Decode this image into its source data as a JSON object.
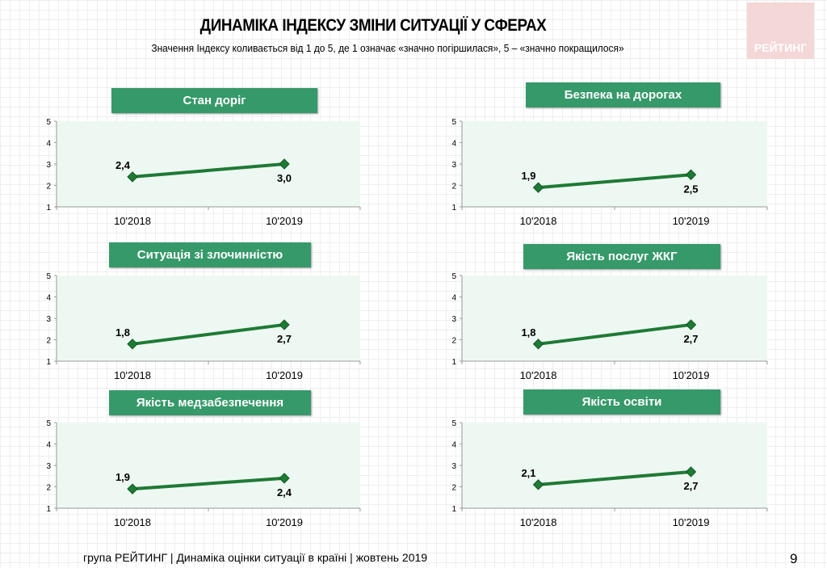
{
  "header": {
    "title": "ДИНАМІКА ІНДЕКСУ ЗМІНИ СИТУАЦІЇ У СФЕРАХ",
    "subtitle": "Значення Індексу коливається від 1 до 5, де 1 означає «значно погіршилася», 5 – «значно покращилося»",
    "logo": "РЕЙТИНГ"
  },
  "footer": {
    "text": "група РЕЙТИНГ |  Динаміка оцінки ситуації в країні  |  жовтень  2019",
    "page": "9"
  },
  "colors": {
    "line": "#1e7a35",
    "plot_bg": "#eef8f2",
    "title_bg": "#36996a"
  },
  "chart_data": [
    {
      "type": "line",
      "title": "Стан доріг",
      "categories": [
        "10'2018",
        "10'2019"
      ],
      "values": [
        2.4,
        3.0
      ],
      "labels": [
        "2,4",
        "3,0"
      ],
      "ylim": [
        1,
        5
      ],
      "yticks": [
        "1",
        "2",
        "3",
        "4",
        "5"
      ]
    },
    {
      "type": "line",
      "title": "Безпека на дорогах",
      "categories": [
        "10'2018",
        "10'2019"
      ],
      "values": [
        1.9,
        2.5
      ],
      "labels": [
        "1,9",
        "2,5"
      ],
      "ylim": [
        1,
        5
      ],
      "yticks": [
        "1",
        "2",
        "3",
        "4",
        "5"
      ]
    },
    {
      "type": "line",
      "title": "Ситуація зі злочинністю",
      "categories": [
        "10'2018",
        "10'2019"
      ],
      "values": [
        1.8,
        2.7
      ],
      "labels": [
        "1,8",
        "2,7"
      ],
      "ylim": [
        1,
        5
      ],
      "yticks": [
        "1",
        "2",
        "3",
        "4",
        "5"
      ]
    },
    {
      "type": "line",
      "title": "Якість послуг ЖКГ",
      "categories": [
        "10'2018",
        "10'2019"
      ],
      "values": [
        1.8,
        2.7
      ],
      "labels": [
        "1,8",
        "2,7"
      ],
      "ylim": [
        1,
        5
      ],
      "yticks": [
        "1",
        "2",
        "3",
        "4",
        "5"
      ]
    },
    {
      "type": "line",
      "title": "Якість медзабезпечення",
      "categories": [
        "10'2018",
        "10'2019"
      ],
      "values": [
        1.9,
        2.4
      ],
      "labels": [
        "1,9",
        "2,4"
      ],
      "ylim": [
        1,
        5
      ],
      "yticks": [
        "1",
        "2",
        "3",
        "4",
        "5"
      ]
    },
    {
      "type": "line",
      "title": "Якість освіти",
      "categories": [
        "10'2018",
        "10'2019"
      ],
      "values": [
        2.1,
        2.7
      ],
      "labels": [
        "2,1",
        "2,7"
      ],
      "ylim": [
        1,
        5
      ],
      "yticks": [
        "1",
        "2",
        "3",
        "4",
        "5"
      ]
    }
  ]
}
